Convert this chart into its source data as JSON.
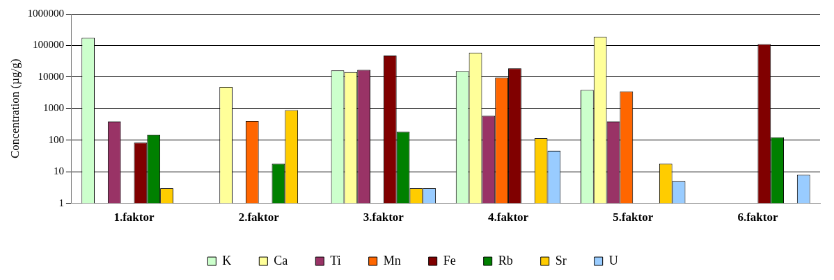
{
  "chart_data": {
    "type": "bar",
    "ylabel": "Concentration (µg/g)",
    "log": "y",
    "grid": "y",
    "legend": "bottom",
    "categories": [
      "1.faktor",
      "2.faktor",
      "3.faktor",
      "4.faktor",
      "5.faktor",
      "6.faktor"
    ],
    "ylim": [
      1,
      1000000
    ],
    "yticks": [
      1,
      10,
      100,
      1000,
      10000,
      100000,
      1000000
    ],
    "series": [
      {
        "name": "K",
        "color": "#ccffcc",
        "values": [
          174000,
          null,
          16300,
          15500,
          3900,
          null
        ]
      },
      {
        "name": "Ca",
        "color": "#ffff99",
        "values": [
          null,
          4900,
          14400,
          59000,
          190000,
          null
        ]
      },
      {
        "name": "Ti",
        "color": "#993366",
        "values": [
          390,
          null,
          17000,
          600,
          390,
          null
        ]
      },
      {
        "name": "Mn",
        "color": "#ff6600",
        "values": [
          null,
          410,
          null,
          9700,
          3500,
          null
        ]
      },
      {
        "name": "Fe",
        "color": "#800000",
        "values": [
          84,
          null,
          47500,
          19000,
          null,
          110000
        ]
      },
      {
        "name": "Rb",
        "color": "#008000",
        "values": [
          150,
          18,
          186,
          null,
          null,
          124
        ]
      },
      {
        "name": "Sr",
        "color": "#ffcc00",
        "values": [
          3,
          890,
          3,
          115,
          18,
          null
        ]
      },
      {
        "name": "U",
        "color": "#99ccff",
        "values": [
          null,
          null,
          3,
          46,
          5,
          8
        ]
      }
    ]
  }
}
